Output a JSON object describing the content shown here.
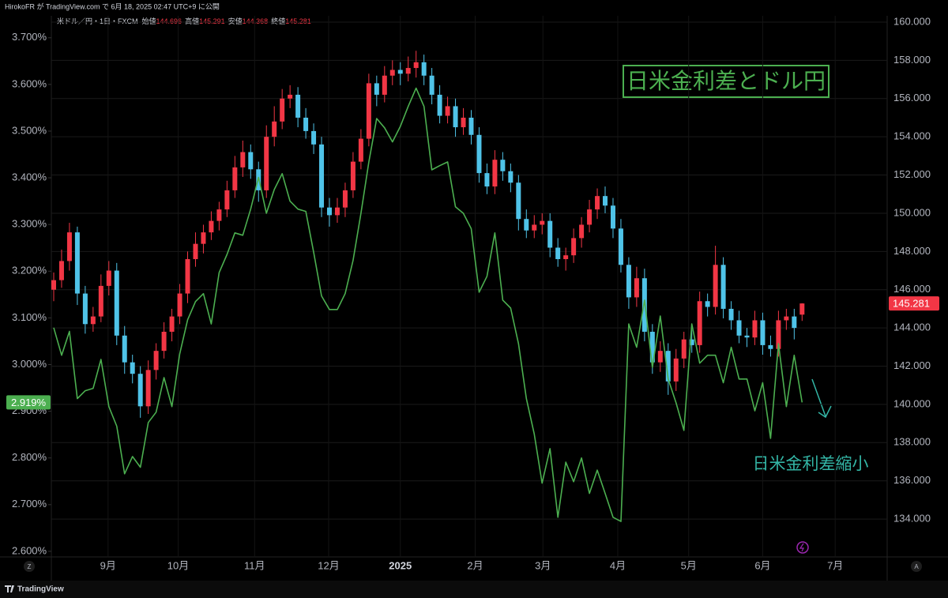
{
  "header": {
    "publisher": "HirokoFR が TradingView.com で 6月 18, 2025 02:47 UTC+9 に公開",
    "logo": "TradingView"
  },
  "chart_data": {
    "type": "candlestick",
    "legend": {
      "symbol": "米ドル／円・1日・FXCM",
      "labels": [
        "始値",
        "高値",
        "安値",
        "終値"
      ]
    },
    "annotations": {
      "title_box": "日米金利差とドル円",
      "note": "日米金利差縮小"
    },
    "axis_buttons": [
      "Z",
      "A"
    ],
    "xlim": [
      -0.3,
      105.8
    ],
    "xticks": [
      {
        "value": 6.9,
        "label": "9月"
      },
      {
        "value": 15.8,
        "label": "10月"
      },
      {
        "value": 25.5,
        "label": "11月"
      },
      {
        "value": 34.9,
        "label": "12月"
      },
      {
        "value": 44,
        "label": "2025"
      },
      {
        "value": 53.5,
        "label": "2月"
      },
      {
        "value": 62.1,
        "label": "3月"
      },
      {
        "value": 71.6,
        "label": "4月"
      },
      {
        "value": 80.6,
        "label": "5月"
      },
      {
        "value": 90,
        "label": "6月"
      },
      {
        "value": 99.2,
        "label": "7月"
      }
    ],
    "ylim": [
      2.588,
      3.747
    ],
    "yticks": [
      {
        "value": 2.6,
        "label": "2.600%"
      },
      {
        "value": 2.7,
        "label": "2.700%"
      },
      {
        "value": 2.8,
        "label": "2.800%"
      },
      {
        "value": 2.9,
        "label": "2.900%"
      },
      {
        "value": 3.0,
        "label": "3.000%"
      },
      {
        "value": 3.1,
        "label": "3.100%"
      },
      {
        "value": 3.2,
        "label": "3.200%"
      },
      {
        "value": 3.3,
        "label": "3.300%"
      },
      {
        "value": 3.4,
        "label": "3.400%"
      },
      {
        "value": 3.5,
        "label": "3.500%"
      },
      {
        "value": 3.6,
        "label": "3.600%"
      },
      {
        "value": 3.7,
        "label": "3.700%"
      }
    ],
    "y2lim": [
      132.02,
      160.33
    ],
    "y2ticks": [
      {
        "value": 134,
        "label": "134.000"
      },
      {
        "value": 136,
        "label": "136.000"
      },
      {
        "value": 138,
        "label": "138.000"
      },
      {
        "value": 140,
        "label": "140.000"
      },
      {
        "value": 142,
        "label": "142.000"
      },
      {
        "value": 144,
        "label": "144.000"
      },
      {
        "value": 146,
        "label": "146.000"
      },
      {
        "value": 148,
        "label": "148.000"
      },
      {
        "value": 150,
        "label": "150.000"
      },
      {
        "value": 152,
        "label": "152.000"
      },
      {
        "value": 154,
        "label": "154.000"
      },
      {
        "value": 156,
        "label": "156.000"
      },
      {
        "value": 158,
        "label": "158.000"
      },
      {
        "value": 160,
        "label": "160.000"
      }
    ],
    "grid": true,
    "series": [
      {
        "type": "candlestick",
        "axis": "y2",
        "up_color": "#f23645",
        "down_color": "#4fc3e8",
        "open": [
          146.0,
          146.5,
          147.5,
          149.0,
          145.8,
          144.2,
          144.6,
          146.2,
          147.0,
          143.6,
          142.2,
          141.6,
          139.9,
          141.8,
          142.8,
          143.8,
          144.6,
          145.8,
          147.6,
          148.4,
          149.0,
          149.6,
          150.2,
          151.2,
          152.4,
          153.2,
          152.3,
          151.2,
          154.0,
          154.8,
          156.0,
          156.2,
          155.0,
          154.3,
          153.6,
          150.3,
          149.9,
          150.3,
          151.2,
          152.7,
          153.9,
          156.8,
          156.2,
          157.2,
          157.5,
          157.3,
          157.6,
          157.9,
          157.2,
          156.2,
          155.1,
          155.6,
          154.5,
          155.0,
          154.1,
          152.1,
          151.4,
          152.8,
          152.2,
          151.6,
          149.7,
          149.1,
          149.4,
          149.6,
          148.2,
          147.6,
          147.8,
          148.7,
          149.4,
          150.2,
          150.9,
          150.4,
          149.2,
          147.3,
          145.6,
          146.6,
          143.8,
          142.2,
          142.8,
          141.2,
          142.4,
          143.4,
          143.1,
          145.4,
          145.1,
          147.3,
          145.0,
          144.4,
          143.6,
          143.5,
          144.4,
          143.1,
          142.9,
          144.4,
          144.6,
          144.696
        ],
        "high": [
          146.9,
          148.1,
          149.5,
          149.3,
          146.2,
          145.1,
          146.8,
          147.5,
          147.4,
          144.1,
          142.6,
          142.0,
          142.3,
          143.2,
          144.3,
          145.0,
          146.3,
          148.0,
          149.0,
          149.4,
          150.1,
          150.6,
          151.7,
          153.0,
          153.8,
          153.6,
          152.7,
          154.6,
          155.6,
          156.5,
          156.7,
          156.6,
          155.5,
          154.7,
          154.0,
          150.8,
          150.8,
          151.6,
          153.2,
          154.4,
          157.3,
          157.2,
          157.7,
          158.0,
          157.9,
          158.2,
          158.5,
          158.3,
          157.6,
          156.7,
          156.1,
          156.0,
          155.5,
          155.4,
          154.5,
          152.6,
          153.3,
          153.2,
          152.6,
          152.0,
          150.2,
          149.9,
          150.0,
          150.0,
          148.7,
          148.2,
          149.2,
          149.8,
          150.7,
          151.3,
          151.4,
          150.8,
          149.7,
          147.7,
          147.2,
          147.1,
          144.2,
          143.3,
          143.2,
          142.9,
          143.8,
          143.9,
          145.9,
          145.8,
          148.3,
          147.7,
          145.4,
          144.9,
          144.0,
          144.9,
          144.8,
          143.6,
          144.9,
          145.0,
          145.0,
          145.291
        ],
        "low": [
          145.4,
          146.1,
          147.0,
          145.2,
          143.7,
          143.8,
          144.3,
          145.7,
          143.1,
          141.6,
          141.1,
          139.3,
          139.5,
          141.3,
          142.4,
          143.3,
          144.2,
          145.3,
          147.2,
          147.9,
          148.6,
          149.1,
          149.8,
          150.8,
          151.9,
          151.8,
          150.6,
          150.8,
          153.5,
          154.4,
          155.5,
          154.5,
          153.9,
          153.1,
          149.8,
          149.3,
          149.5,
          149.8,
          150.8,
          152.3,
          153.5,
          155.6,
          155.8,
          156.7,
          156.7,
          156.9,
          157.1,
          156.7,
          155.7,
          154.7,
          154.7,
          154.0,
          154.1,
          153.6,
          151.6,
          151.0,
          151.0,
          151.7,
          151.1,
          149.1,
          148.7,
          148.7,
          148.9,
          147.7,
          147.2,
          147.0,
          147.4,
          148.2,
          149.0,
          149.7,
          150.0,
          148.7,
          146.9,
          145.0,
          145.1,
          143.3,
          141.6,
          141.7,
          140.5,
          140.7,
          141.9,
          142.7,
          142.7,
          144.6,
          144.7,
          144.5,
          143.9,
          143.2,
          143.0,
          143.1,
          142.6,
          142.5,
          142.5,
          143.9,
          143.4,
          144.368
        ],
        "close": [
          146.5,
          147.5,
          149.0,
          145.8,
          144.2,
          144.6,
          146.2,
          147.0,
          143.6,
          142.2,
          141.6,
          139.9,
          141.8,
          142.8,
          143.8,
          144.6,
          145.8,
          147.6,
          148.4,
          149.0,
          149.6,
          150.2,
          151.2,
          152.4,
          153.2,
          152.3,
          151.2,
          154.0,
          154.8,
          156.0,
          156.2,
          155.0,
          154.3,
          153.6,
          150.3,
          149.9,
          150.3,
          151.2,
          152.7,
          153.9,
          156.8,
          156.2,
          157.2,
          157.5,
          157.3,
          157.6,
          157.9,
          157.2,
          156.2,
          155.1,
          155.6,
          154.5,
          155.0,
          154.1,
          152.1,
          151.4,
          152.8,
          152.2,
          151.6,
          149.7,
          149.1,
          149.4,
          149.6,
          148.2,
          147.6,
          147.8,
          148.7,
          149.4,
          150.2,
          150.9,
          150.4,
          149.2,
          147.3,
          145.6,
          146.6,
          143.8,
          142.2,
          142.8,
          141.2,
          142.4,
          143.4,
          143.1,
          145.4,
          145.1,
          147.3,
          145.0,
          144.4,
          143.6,
          143.5,
          144.4,
          143.1,
          142.9,
          144.4,
          144.6,
          144.0,
          145.281
        ]
      },
      {
        "type": "line",
        "axis": "y",
        "color": "#4caf50",
        "last_label": "2.919%",
        "values": [
          3.079,
          3.02,
          3.071,
          2.927,
          2.944,
          2.949,
          3.011,
          2.91,
          2.868,
          2.766,
          2.803,
          2.78,
          2.876,
          2.898,
          2.972,
          2.91,
          3.023,
          3.096,
          3.135,
          3.152,
          3.087,
          3.197,
          3.236,
          3.282,
          3.277,
          3.333,
          3.401,
          3.324,
          3.375,
          3.409,
          3.35,
          3.333,
          3.328,
          3.24,
          3.147,
          3.118,
          3.118,
          3.152,
          3.223,
          3.324,
          3.434,
          3.527,
          3.507,
          3.477,
          3.51,
          3.553,
          3.592,
          3.553,
          3.417,
          3.426,
          3.434,
          3.338,
          3.324,
          3.291,
          3.155,
          3.189,
          3.282,
          3.138,
          3.121,
          3.045,
          2.927,
          2.851,
          2.746,
          2.82,
          2.673,
          2.791,
          2.749,
          2.8,
          2.724,
          2.774,
          2.724,
          2.673,
          2.664,
          3.087,
          3.037,
          3.138,
          2.994,
          3.104,
          2.969,
          2.918,
          2.859,
          3.087,
          3.003,
          3.02,
          3.02,
          2.961,
          3.037,
          2.969,
          2.969,
          2.901,
          2.961,
          2.842,
          3.045,
          2.91,
          3.02,
          2.919
        ]
      }
    ]
  }
}
